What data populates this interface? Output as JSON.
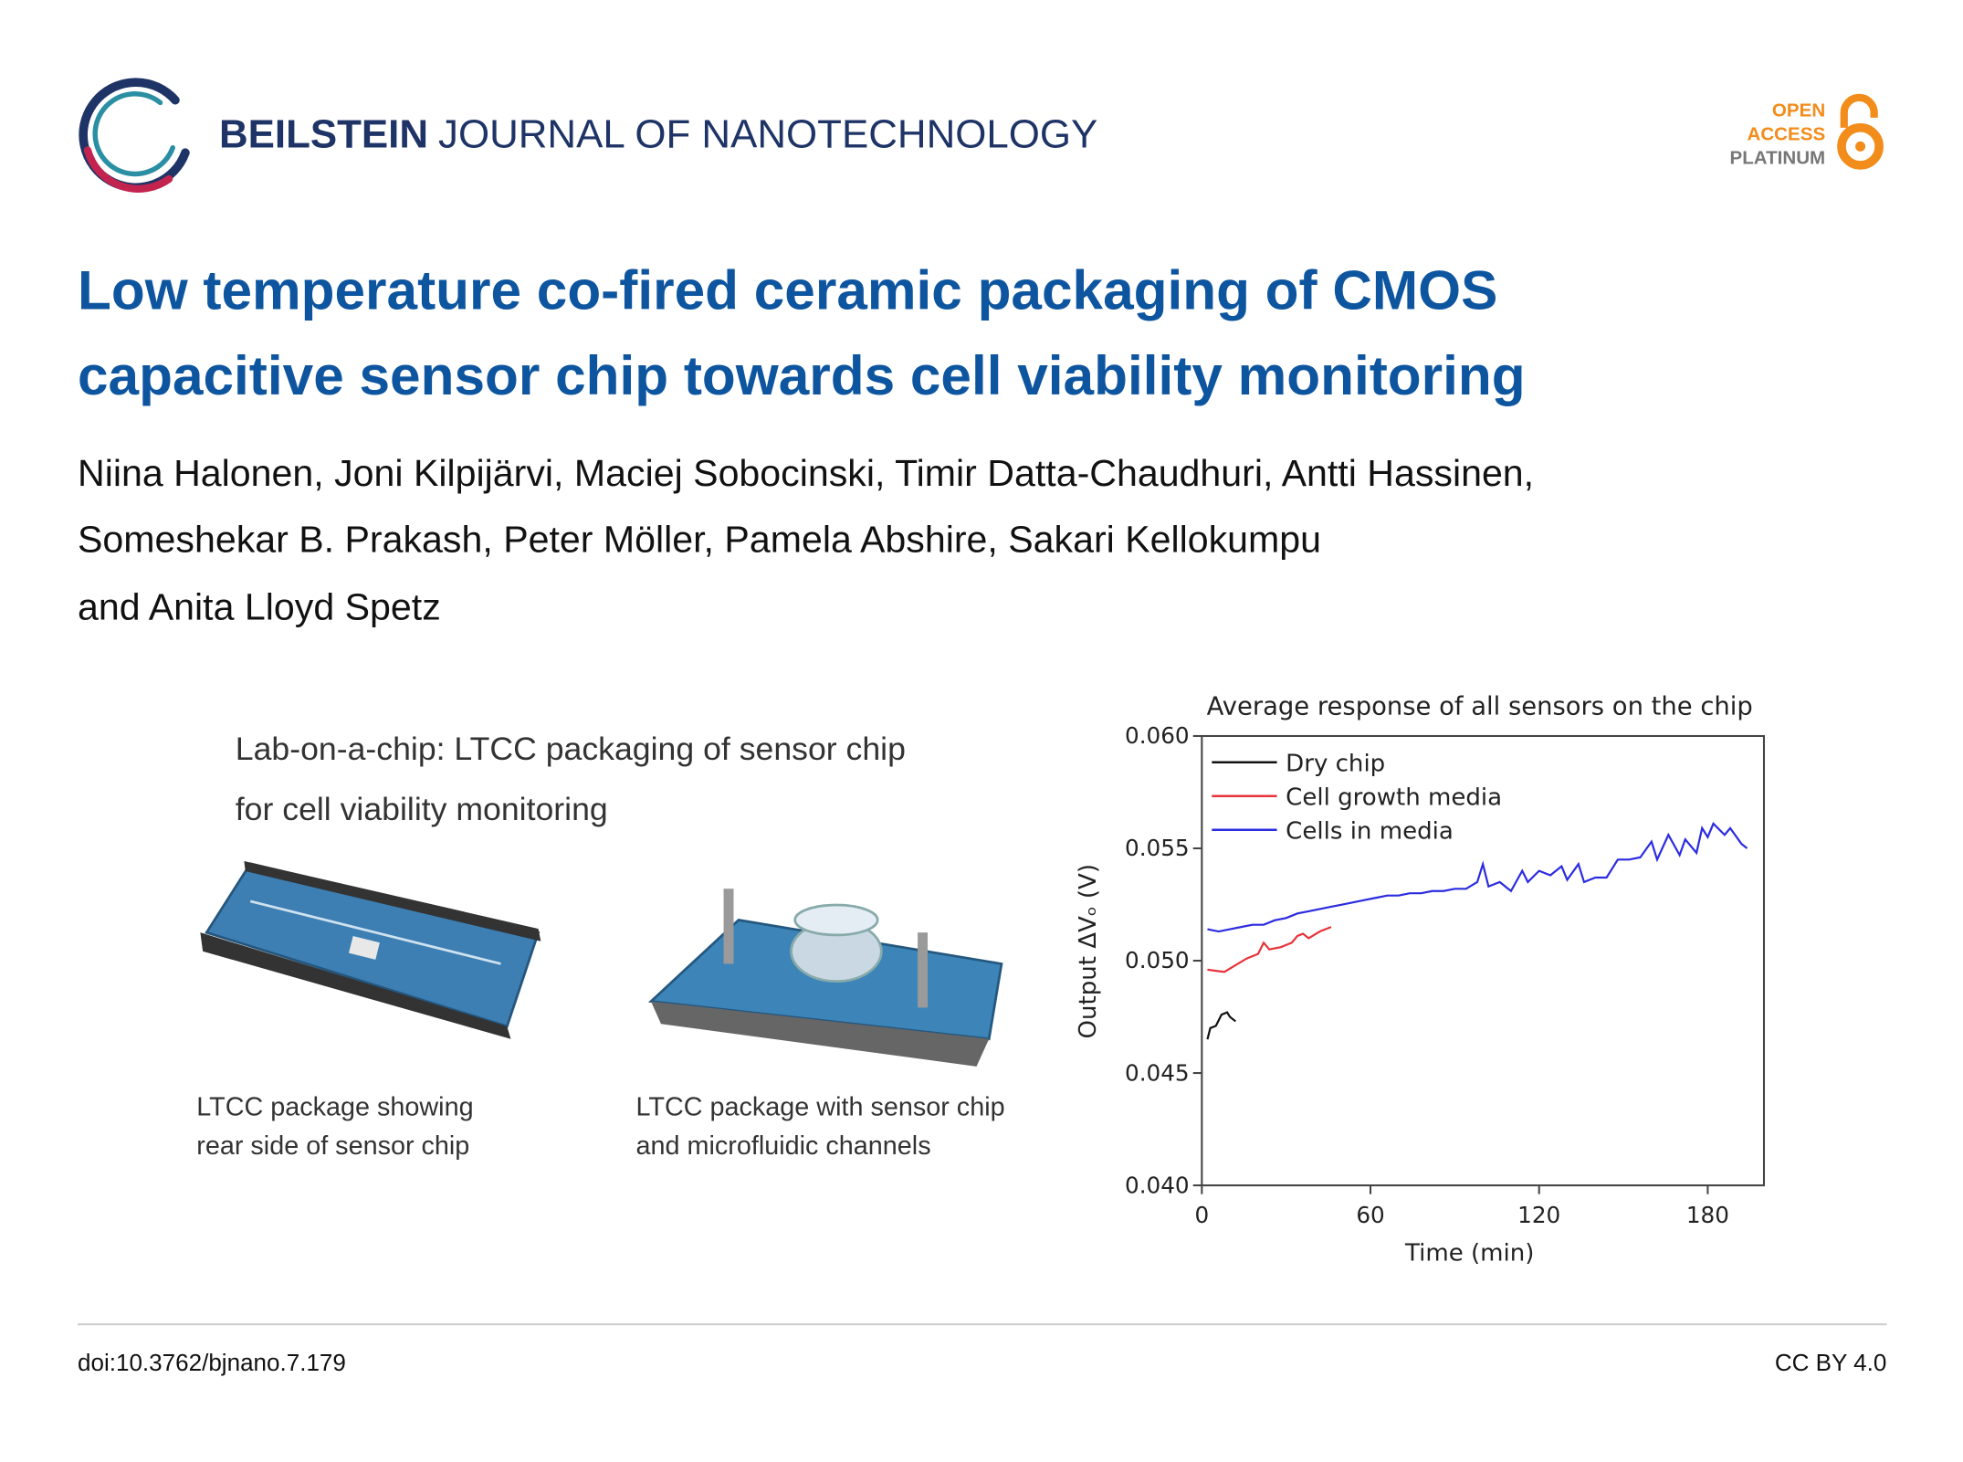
{
  "header": {
    "journal_bold": "BEILSTEIN",
    "journal_rest": "JOURNAL OF NANOTECHNOLOGY",
    "badge": [
      "OPEN",
      "ACCESS",
      "PLATINUM"
    ]
  },
  "title": [
    "Low temperature co-fired ceramic packaging of CMOS",
    "capacitive sensor chip towards cell viability monitoring"
  ],
  "authors": [
    "Niina Halonen, Joni Kilpijärvi, Maciej Sobocinski, Timir Datta-Chaudhuri, Antti Hassinen,",
    "Someshekar B. Prakash, Peter Möller, Pamela Abshire, Sakari Kellokumpu",
    "and Anita Lloyd Spetz"
  ],
  "figure": {
    "heading": [
      "Lab-on-a-chip: LTCC packaging of sensor chip",
      "for cell viability monitoring"
    ],
    "captions": [
      [
        "LTCC package showing",
        "rear side of sensor chip"
      ],
      [
        "LTCC package with sensor chip",
        "and microfluidic channels"
      ]
    ]
  },
  "chart_data": {
    "type": "line",
    "title": "Average response of all sensors on the chip",
    "x_label": "Time (min)",
    "y_label": "Output ΔVₒ (V)",
    "xlim": [
      0,
      200
    ],
    "xticks": [
      0,
      60,
      120,
      180
    ],
    "ylim": [
      0.04,
      0.06
    ],
    "yticks": [
      {
        "value": 0.04,
        "label": "0.040"
      },
      {
        "value": 0.045,
        "label": "0.045"
      },
      {
        "value": 0.05,
        "label": "0.050"
      },
      {
        "value": 0.055,
        "label": "0.055"
      },
      {
        "value": 0.06,
        "label": "0.060"
      }
    ],
    "legend": "top-left",
    "series": [
      {
        "name": "Dry chip",
        "color": "#111111",
        "x": [
          2,
          3,
          5,
          7,
          9,
          10,
          12
        ],
        "values": [
          0.0465,
          0.047,
          0.0471,
          0.0476,
          0.0477,
          0.0475,
          0.0473
        ]
      },
      {
        "name": "Cell growth media",
        "color": "#e8323a",
        "x": [
          2,
          8,
          12,
          16,
          20,
          22,
          24,
          28,
          32,
          34,
          36,
          38,
          42,
          46
        ],
        "values": [
          0.0496,
          0.0495,
          0.0498,
          0.0501,
          0.0503,
          0.0508,
          0.0505,
          0.0506,
          0.0508,
          0.0511,
          0.0512,
          0.051,
          0.0513,
          0.0515
        ]
      },
      {
        "name": "Cells in media",
        "color": "#2b2be0",
        "x": [
          2,
          6,
          10,
          14,
          18,
          22,
          26,
          30,
          34,
          38,
          42,
          46,
          50,
          54,
          58,
          62,
          66,
          70,
          74,
          78,
          82,
          86,
          90,
          94,
          98,
          100,
          102,
          106,
          110,
          114,
          116,
          120,
          124,
          128,
          130,
          134,
          136,
          140,
          144,
          148,
          152,
          156,
          160,
          162,
          166,
          170,
          172,
          176,
          178,
          180,
          182,
          186,
          188,
          192,
          194
        ],
        "values": [
          0.0514,
          0.0513,
          0.0514,
          0.0515,
          0.0516,
          0.0516,
          0.0518,
          0.0519,
          0.0521,
          0.0522,
          0.0523,
          0.0524,
          0.0525,
          0.0526,
          0.0527,
          0.0528,
          0.0529,
          0.0529,
          0.053,
          0.053,
          0.0531,
          0.0531,
          0.0532,
          0.0532,
          0.0535,
          0.0543,
          0.0533,
          0.0535,
          0.0531,
          0.054,
          0.0535,
          0.054,
          0.0538,
          0.0542,
          0.0536,
          0.0543,
          0.0535,
          0.0537,
          0.0537,
          0.0545,
          0.0545,
          0.0546,
          0.0553,
          0.0545,
          0.0556,
          0.0547,
          0.0554,
          0.0548,
          0.0559,
          0.0555,
          0.0561,
          0.0556,
          0.0559,
          0.0552,
          0.055
        ]
      }
    ]
  },
  "footer": {
    "doi": "doi:10.3762/bjnano.7.179",
    "license": "CC BY 4.0"
  }
}
